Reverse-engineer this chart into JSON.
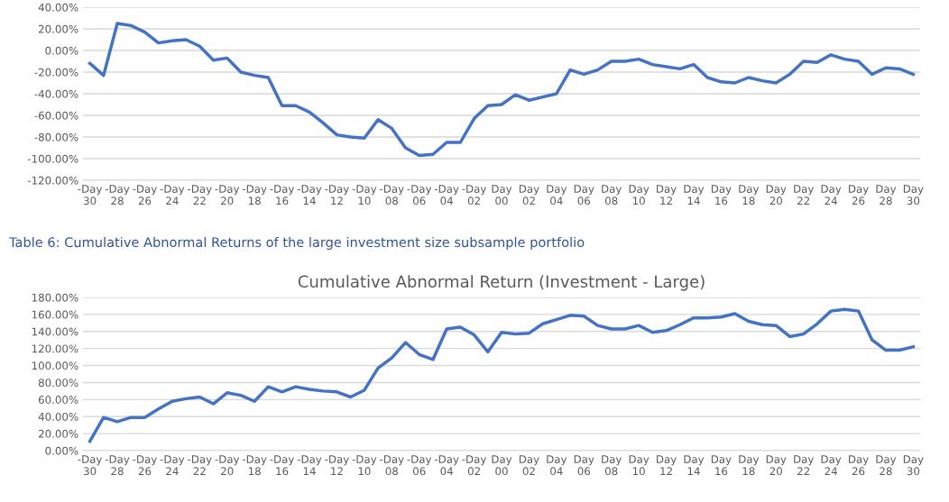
{
  "chart_data": [
    {
      "type": "line",
      "categories": [
        "-Day 30",
        null,
        "-Day 28",
        null,
        "-Day 26",
        null,
        "-Day 24",
        null,
        "-Day 22",
        null,
        "-Day 20",
        null,
        "-Day 18",
        null,
        "-Day 16",
        null,
        "-Day 14",
        null,
        "-Day 12",
        null,
        "-Day 10",
        null,
        "-Day 08",
        null,
        "-Day 06",
        null,
        "-Day 04",
        null,
        "-Day 02",
        null,
        "Day 00",
        null,
        "Day 02",
        null,
        "Day 04",
        null,
        "Day 06",
        null,
        "Day 08",
        null,
        "Day 10",
        null,
        "Day 12",
        null,
        "Day 14",
        null,
        "Day 16",
        null,
        "Day 18",
        null,
        "Day 20",
        null,
        "Day 22",
        null,
        "Day 24",
        null,
        "Day 26",
        null,
        "Day 28",
        null,
        "Day 30"
      ],
      "series": [
        {
          "color": "#4472c4",
          "values": [
            -12,
            -23,
            25,
            23,
            17,
            7,
            9,
            10,
            4,
            -9,
            -7,
            -20,
            -23,
            -25,
            -51,
            -51,
            -57,
            -67,
            -78,
            -80,
            -81,
            -64,
            -72,
            -90,
            -97,
            -96,
            -85,
            -85,
            -63,
            -51,
            -50,
            -41,
            -46,
            -43,
            -40,
            -18,
            -22,
            -18,
            -10,
            -10,
            -8,
            -13,
            -15,
            -17,
            -13,
            -25,
            -29,
            -30,
            -25,
            -28,
            -30,
            -22,
            -10,
            -11,
            -4,
            -8,
            -10,
            -22,
            -16,
            -17,
            -22
          ]
        }
      ],
      "ylim": [
        -120,
        40
      ],
      "yticks": [
        {
          "value": -120,
          "label": "-120.00%"
        },
        {
          "value": -100,
          "label": "-100.00%"
        },
        {
          "value": -80,
          "label": "-80.00%"
        },
        {
          "value": -60,
          "label": "-60.00%"
        },
        {
          "value": -40,
          "label": "-40.00%"
        },
        {
          "value": -20,
          "label": "-20.00%"
        },
        {
          "value": 0,
          "label": "0.00%"
        },
        {
          "value": 20,
          "label": "20.00%"
        },
        {
          "value": 40,
          "label": "40.00%"
        }
      ],
      "grid": "y",
      "line_style": "solid",
      "marker": "none"
    },
    {
      "type": "line",
      "title": "Cumulative Abnormal Return (Investment - Large)",
      "annotations": [
        "Table 6: Cumulative Abnormal Returns of the large investment size subsample portfolio"
      ],
      "categories": [
        "-Day 30",
        null,
        "-Day 28",
        null,
        "-Day 26",
        null,
        "-Day 24",
        null,
        "-Day 22",
        null,
        "-Day 20",
        null,
        "-Day 18",
        null,
        "-Day 16",
        null,
        "-Day 14",
        null,
        "-Day 12",
        null,
        "-Day 10",
        null,
        "-Day 08",
        null,
        "-Day 06",
        null,
        "-Day 04",
        null,
        "-Day 02",
        null,
        "Day 00",
        null,
        "Day 02",
        null,
        "Day 04",
        null,
        "Day 06",
        null,
        "Day 08",
        null,
        "Day 10",
        null,
        "Day 12",
        null,
        "Day 14",
        null,
        "Day 16",
        null,
        "Day 18",
        null,
        "Day 20",
        null,
        "Day 22",
        null,
        "Day 24",
        null,
        "Day 26",
        null,
        "Day 28",
        null,
        "Day 30"
      ],
      "series": [
        {
          "color": "#4472c4",
          "values": [
            11,
            39,
            34,
            39,
            39,
            49,
            58,
            61,
            63,
            55,
            68,
            65,
            58,
            75,
            69,
            75,
            72,
            70,
            69,
            63,
            71,
            97,
            109,
            127,
            113,
            107,
            143,
            145,
            136,
            116,
            139,
            137,
            138,
            149,
            154,
            159,
            158,
            147,
            143,
            143,
            147,
            139,
            141,
            148,
            156,
            156,
            157,
            161,
            152,
            148,
            147,
            134,
            137,
            149,
            164,
            166,
            164,
            130,
            118,
            118,
            122
          ]
        }
      ],
      "ylim": [
        0,
        180
      ],
      "yticks": [
        {
          "value": 0,
          "label": "0.00%"
        },
        {
          "value": 20,
          "label": "20.00%"
        },
        {
          "value": 40,
          "label": "40.00%"
        },
        {
          "value": 60,
          "label": "60.00%"
        },
        {
          "value": 80,
          "label": "80.00%"
        },
        {
          "value": 100,
          "label": "100.00%"
        },
        {
          "value": 120,
          "label": "120.00%"
        },
        {
          "value": 140,
          "label": "140.00%"
        },
        {
          "value": 160,
          "label": "160.00%"
        },
        {
          "value": 180,
          "label": "180.00%"
        }
      ],
      "grid": "y",
      "line_style": "solid",
      "marker": "none"
    }
  ]
}
